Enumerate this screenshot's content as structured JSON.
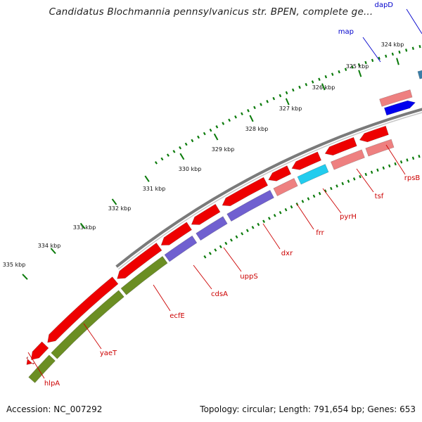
{
  "title": "Candidatus Blochmannia pennsylvanicus str. BPEN, complete ge...",
  "footer": {
    "accession": "Accession: NC_007292",
    "stats": "Topology: circular; Length: 791,654 bp; Genes: 653"
  },
  "ticks": [
    "324 kbp",
    "325 kbp",
    "326 kbp",
    "327 kbp",
    "328 kbp",
    "329 kbp",
    "330 kbp",
    "331 kbp",
    "332 kbp",
    "333 kbp",
    "334 kbp",
    "335 kbp"
  ],
  "genes": [
    {
      "name": "dapD",
      "strand": "forward",
      "color": "#0000cc"
    },
    {
      "name": "map",
      "strand": "forward",
      "color": "#0000cc"
    },
    {
      "name": "rpsB",
      "strand": "reverse",
      "color": "#cc0000"
    },
    {
      "name": "tsf",
      "strand": "reverse",
      "color": "#cc0000"
    },
    {
      "name": "pyrH",
      "strand": "reverse",
      "color": "#cc0000"
    },
    {
      "name": "frr",
      "strand": "reverse",
      "color": "#cc0000"
    },
    {
      "name": "dxr",
      "strand": "reverse",
      "color": "#cc0000"
    },
    {
      "name": "uppS",
      "strand": "reverse",
      "color": "#cc0000"
    },
    {
      "name": "cdsA",
      "strand": "reverse",
      "color": "#cc0000"
    },
    {
      "name": "ecfE",
      "strand": "reverse",
      "color": "#cc0000"
    },
    {
      "name": "yaeT",
      "strand": "reverse",
      "color": "#cc0000"
    },
    {
      "name": "hlpA",
      "strand": "reverse",
      "color": "#cc0000"
    }
  ],
  "colors": {
    "cds": "#ee0000",
    "cds_light": "#ee8080",
    "cog_blue": "#7060d0",
    "cog_green": "#6b8e23",
    "cog_cyan": "#22ccee",
    "cog_darkblue": "#0000ee",
    "cog_teal": "#3a7ea8",
    "backbone": "#7a7a7a",
    "tick": "#0a7a0a"
  }
}
